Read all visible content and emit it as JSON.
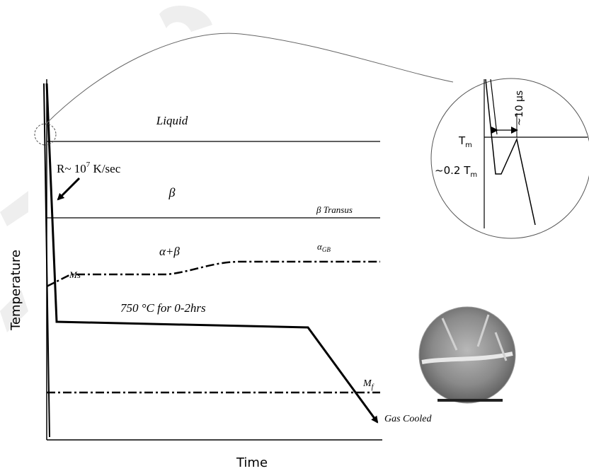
{
  "axes": {
    "x_label": "Time",
    "y_label": "Temperature"
  },
  "regions": {
    "liquid": "Liquid",
    "beta": "β",
    "alpha_beta": "α+β"
  },
  "lines": {
    "beta_transus": "β Transus",
    "alpha_gb": {
      "base": "α",
      "sub": "GB"
    },
    "ms": "Ms",
    "mf": {
      "base": "M",
      "sub": "f"
    }
  },
  "annotations": {
    "cooling_rate": {
      "prefix": "R~ 10",
      "sup": "7",
      "suffix": " K/sec"
    },
    "aging": "750 °C for 0-2hrs",
    "gas_cooled": "Gas Cooled"
  },
  "inset": {
    "tm": {
      "base": "T",
      "sub": "m"
    },
    "tm_fraction": {
      "prefix": "~0.2 T",
      "sub": "m"
    },
    "pulse": "~10 μs"
  }
}
